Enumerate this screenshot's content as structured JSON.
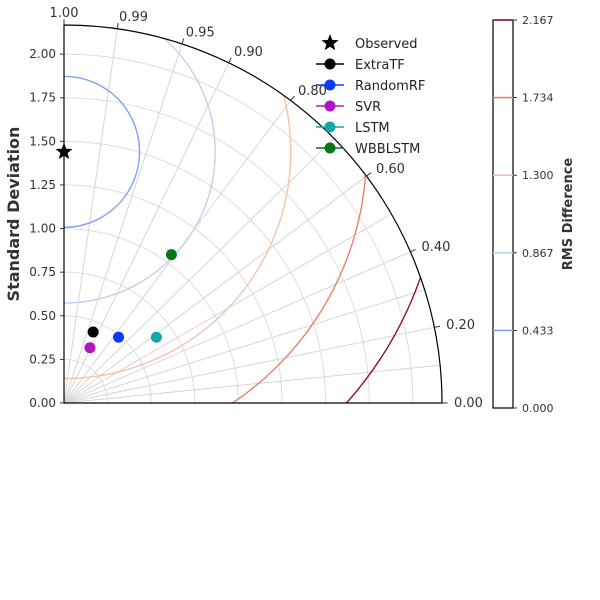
{
  "chart_data": {
    "type": "taylor",
    "ylabel": "Standard Deviation",
    "std_ticks": [
      "0.00",
      "0.25",
      "0.50",
      "0.75",
      "1.00",
      "1.25",
      "1.50",
      "1.75",
      "2.00"
    ],
    "std_max": 2.167,
    "correlation_ticks": [
      {
        "value": 1.0,
        "label": "1.00"
      },
      {
        "value": 0.99,
        "label": "0.99"
      },
      {
        "value": 0.95,
        "label": "0.95"
      },
      {
        "value": 0.9,
        "label": "0.90"
      },
      {
        "value": 0.8,
        "label": "0.80"
      },
      {
        "value": 0.6,
        "label": "0.60"
      },
      {
        "value": 0.4,
        "label": "0.40"
      },
      {
        "value": 0.2,
        "label": "0.20"
      },
      {
        "value": 0.0,
        "label": "0.00"
      }
    ],
    "reference": {
      "name": "Observed",
      "std": 1.44,
      "marker": "star",
      "color": "#000000"
    },
    "models": [
      {
        "name": "ExtraTF",
        "std": 0.44,
        "correlation": 0.925,
        "color": "#000000"
      },
      {
        "name": "RandomRF",
        "std": 0.49,
        "correlation": 0.77,
        "color": "#0b3bf5"
      },
      {
        "name": "SVR",
        "std": 0.35,
        "correlation": 0.905,
        "color": "#b016c0"
      },
      {
        "name": "LSTM",
        "std": 0.65,
        "correlation": 0.58,
        "color": "#17a5ad"
      },
      {
        "name": "WBBLSTM",
        "std": 1.05,
        "correlation": 0.81,
        "color": "#087518"
      }
    ],
    "rms_contours": [
      {
        "value": 0.433,
        "color": "#7fa3ee"
      },
      {
        "value": 0.867,
        "color": "#bcd3ef"
      },
      {
        "value": 1.3,
        "color": "#efc5aa"
      },
      {
        "value": 1.734,
        "color": "#e7826a"
      },
      {
        "value": 2.167,
        "color": "#9b0a2e"
      }
    ],
    "colorbar": {
      "label": "RMS Difference",
      "ticks": [
        "0.000",
        "0.433",
        "0.867",
        "1.300",
        "1.734",
        "2.167"
      ],
      "min": 0,
      "max": 2.167
    },
    "grid": true,
    "legend_position": "top-right"
  }
}
